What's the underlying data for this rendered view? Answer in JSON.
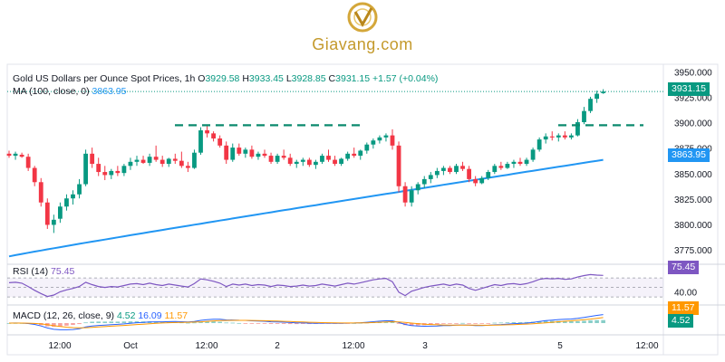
{
  "brand": {
    "name": "Giavang.com",
    "logo_color": "#d4a73a"
  },
  "header": {
    "title": "Gold US Dollars per Ounce Spot Prices, 1h",
    "o_key": "O",
    "o_val": "3929.58",
    "h_key": "H",
    "h_val": "3933.45",
    "l_key": "L",
    "l_val": "3928.85",
    "c_key": "C",
    "c_val": "3931.15",
    "change": "+1.57 (+0.04%)"
  },
  "ma_legend": {
    "label": "MA (100, close, 0)",
    "value": "3863.95"
  },
  "rsi_legend": {
    "label": "RSI (14)",
    "value": "75.45"
  },
  "macd_legend": {
    "label": "MACD (12, 26, close, 9)",
    "v1": "4.52",
    "v2": "16.09",
    "v3": "11.57"
  },
  "tags": {
    "price": "3931.15",
    "ma": "3863.95",
    "rsi": "75.45",
    "macd_signal": "11.57",
    "macd_hist": "4.52"
  },
  "colors": {
    "up": "#089981",
    "down": "#f23645",
    "ma": "#2196f3",
    "rsi": "#7e57c2",
    "level": "#0b8a6e",
    "macd_signal": "#ff9800",
    "macd_line": "#2962ff"
  },
  "chart_data": {
    "type": "candlestick",
    "title": "Gold US Dollars per Ounce Spot Prices, 1h",
    "y_ticks": [
      3950,
      3925,
      3900,
      3875,
      3850,
      3825,
      3800,
      3775
    ],
    "ylim": [
      3763,
      3958
    ],
    "x_ticks": [
      "12:00",
      "Oct",
      "12:00",
      "2",
      "12:00",
      "3",
      "5",
      "12:00"
    ],
    "resistance_level": 3898,
    "ohlc": [
      [
        3870,
        3873,
        3866,
        3868
      ],
      [
        3868,
        3872,
        3864,
        3870
      ],
      [
        3869,
        3871,
        3866,
        3867
      ],
      [
        3867,
        3870,
        3853,
        3856
      ],
      [
        3856,
        3858,
        3838,
        3842
      ],
      [
        3842,
        3846,
        3818,
        3822
      ],
      [
        3822,
        3826,
        3796,
        3800
      ],
      [
        3800,
        3810,
        3792,
        3805
      ],
      [
        3806,
        3822,
        3802,
        3818
      ],
      [
        3818,
        3830,
        3814,
        3826
      ],
      [
        3826,
        3834,
        3820,
        3830
      ],
      [
        3830,
        3845,
        3826,
        3840
      ],
      [
        3840,
        3874,
        3838,
        3870
      ],
      [
        3870,
        3876,
        3856,
        3860
      ],
      [
        3860,
        3866,
        3848,
        3852
      ],
      [
        3852,
        3858,
        3844,
        3849
      ],
      [
        3849,
        3855,
        3845,
        3853
      ],
      [
        3853,
        3858,
        3848,
        3851
      ],
      [
        3851,
        3860,
        3848,
        3858
      ],
      [
        3858,
        3866,
        3854,
        3862
      ],
      [
        3862,
        3868,
        3858,
        3864
      ],
      [
        3864,
        3868,
        3860,
        3861
      ],
      [
        3861,
        3870,
        3858,
        3867
      ],
      [
        3867,
        3878,
        3862,
        3864
      ],
      [
        3864,
        3868,
        3857,
        3860
      ],
      [
        3860,
        3866,
        3857,
        3865
      ],
      [
        3865,
        3870,
        3860,
        3863
      ],
      [
        3863,
        3872,
        3856,
        3858
      ],
      [
        3858,
        3862,
        3852,
        3856
      ],
      [
        3856,
        3874,
        3855,
        3871
      ],
      [
        3871,
        3896,
        3869,
        3893
      ],
      [
        3893,
        3897,
        3886,
        3890
      ],
      [
        3890,
        3892,
        3882,
        3885
      ],
      [
        3885,
        3888,
        3876,
        3878
      ],
      [
        3878,
        3882,
        3860,
        3864
      ],
      [
        3864,
        3880,
        3862,
        3876
      ],
      [
        3876,
        3880,
        3868,
        3870
      ],
      [
        3870,
        3876,
        3866,
        3874
      ],
      [
        3874,
        3878,
        3865,
        3867
      ],
      [
        3867,
        3872,
        3864,
        3870
      ],
      [
        3870,
        3874,
        3866,
        3868
      ],
      [
        3868,
        3871,
        3860,
        3862
      ],
      [
        3862,
        3870,
        3860,
        3868
      ],
      [
        3868,
        3874,
        3864,
        3866
      ],
      [
        3866,
        3870,
        3858,
        3860
      ],
      [
        3860,
        3864,
        3856,
        3862
      ],
      [
        3862,
        3866,
        3858,
        3864
      ],
      [
        3864,
        3866,
        3857,
        3859
      ],
      [
        3859,
        3864,
        3855,
        3862
      ],
      [
        3862,
        3870,
        3860,
        3868
      ],
      [
        3868,
        3874,
        3862,
        3864
      ],
      [
        3864,
        3868,
        3858,
        3860
      ],
      [
        3860,
        3866,
        3858,
        3865
      ],
      [
        3865,
        3872,
        3863,
        3870
      ],
      [
        3870,
        3876,
        3866,
        3868
      ],
      [
        3868,
        3874,
        3864,
        3873
      ],
      [
        3873,
        3881,
        3870,
        3879
      ],
      [
        3879,
        3885,
        3875,
        3883
      ],
      [
        3883,
        3888,
        3880,
        3886
      ],
      [
        3886,
        3890,
        3882,
        3888
      ],
      [
        3888,
        3894,
        3874,
        3878
      ],
      [
        3878,
        3882,
        3832,
        3838
      ],
      [
        3838,
        3842,
        3818,
        3822
      ],
      [
        3822,
        3838,
        3818,
        3834
      ],
      [
        3834,
        3842,
        3830,
        3840
      ],
      [
        3840,
        3848,
        3836,
        3845
      ],
      [
        3845,
        3852,
        3841,
        3849
      ],
      [
        3849,
        3856,
        3846,
        3853
      ],
      [
        3853,
        3858,
        3849,
        3856
      ],
      [
        3856,
        3858,
        3850,
        3852
      ],
      [
        3852,
        3860,
        3850,
        3858
      ],
      [
        3858,
        3862,
        3853,
        3855
      ],
      [
        3855,
        3858,
        3842,
        3845
      ],
      [
        3845,
        3848,
        3838,
        3841
      ],
      [
        3841,
        3848,
        3840,
        3846
      ],
      [
        3846,
        3854,
        3844,
        3852
      ],
      [
        3852,
        3860,
        3850,
        3858
      ],
      [
        3858,
        3862,
        3854,
        3856
      ],
      [
        3856,
        3862,
        3855,
        3860
      ],
      [
        3860,
        3864,
        3856,
        3862
      ],
      [
        3862,
        3866,
        3858,
        3860
      ],
      [
        3860,
        3866,
        3858,
        3864
      ],
      [
        3864,
        3876,
        3862,
        3874
      ],
      [
        3874,
        3886,
        3872,
        3884
      ],
      [
        3884,
        3890,
        3880,
        3887
      ],
      [
        3887,
        3892,
        3883,
        3886
      ],
      [
        3886,
        3890,
        3882,
        3888
      ],
      [
        3888,
        3892,
        3884,
        3886
      ],
      [
        3886,
        3890,
        3884,
        3888
      ],
      [
        3888,
        3904,
        3887,
        3901
      ],
      [
        3901,
        3916,
        3899,
        3912
      ],
      [
        3912,
        3926,
        3910,
        3924
      ],
      [
        3924,
        3932,
        3920,
        3929
      ],
      [
        3929.58,
        3933.45,
        3928.85,
        3931.15
      ]
    ],
    "ma100": {
      "name": "MA (100, close, 0)",
      "start": 3769,
      "end": 3863.95
    },
    "rsi": {
      "name": "RSI (14)",
      "ylim": [
        15,
        95
      ],
      "levels": [
        70,
        50,
        30
      ],
      "tick_labels": [
        "40.00"
      ],
      "values": [
        60,
        61,
        59,
        52,
        44,
        37,
        31,
        34,
        41,
        45,
        48,
        52,
        61,
        56,
        52,
        50,
        52,
        51,
        54,
        57,
        58,
        56,
        59,
        56,
        54,
        57,
        55,
        53,
        51,
        58,
        68,
        66,
        63,
        59,
        52,
        57,
        55,
        57,
        54,
        56,
        55,
        52,
        55,
        54,
        52,
        53,
        55,
        53,
        54,
        57,
        55,
        53,
        56,
        59,
        57,
        60,
        63,
        66,
        68,
        69,
        62,
        40,
        33,
        42,
        46,
        50,
        53,
        55,
        57,
        54,
        57,
        55,
        48,
        44,
        48,
        52,
        56,
        54,
        57,
        58,
        56,
        58,
        62,
        67,
        69,
        68,
        69,
        67,
        68,
        72,
        75,
        77,
        76,
        75.45
      ]
    },
    "macd": {
      "name": "MACD (12, 26, close, 9)",
      "macd_value": 16.09,
      "signal_value": 11.57,
      "hist_value": 4.52
    }
  }
}
